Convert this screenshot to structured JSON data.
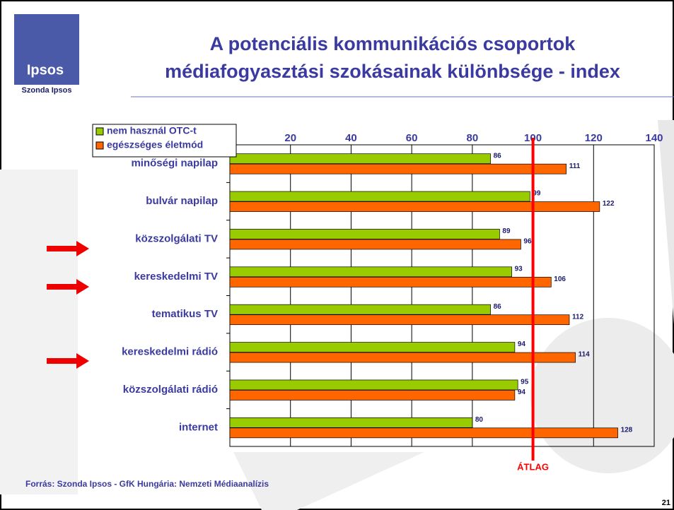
{
  "logo": {
    "text": "Ipsos",
    "caption": "Szonda Ipsos"
  },
  "chart_data": {
    "type": "hbar",
    "title": [
      "A potenciális kommunikációs csoportok",
      "médiafogyasztási szokásainak különbsége - index"
    ],
    "categories": [
      "minőségi napilap",
      "bulvár napilap",
      "közszolgálati TV",
      "kereskedelmi TV",
      "tematikus TV",
      "kereskedelmi rádió",
      "közszolgálati rádió",
      "internet"
    ],
    "series": [
      {
        "name": "nem használ OTC-t",
        "color": "#99cc00",
        "values": [
          86,
          99,
          89,
          93,
          86,
          94,
          95,
          80
        ]
      },
      {
        "name": "egészséges életmód",
        "color": "#ff6600",
        "values": [
          111,
          122,
          96,
          106,
          112,
          114,
          94,
          128
        ]
      }
    ],
    "xlim": [
      0,
      140
    ],
    "xticks": [
      20,
      40,
      60,
      80,
      100,
      120,
      140
    ],
    "grid": true,
    "reference_line": {
      "value": 100,
      "label": "ÁTLAG",
      "color": "#ff0000"
    }
  },
  "footer": {
    "source": "Forrás: Szonda Ipsos - GfK Hungária: Nemzeti Médiaanalízis",
    "page_number": 21
  }
}
